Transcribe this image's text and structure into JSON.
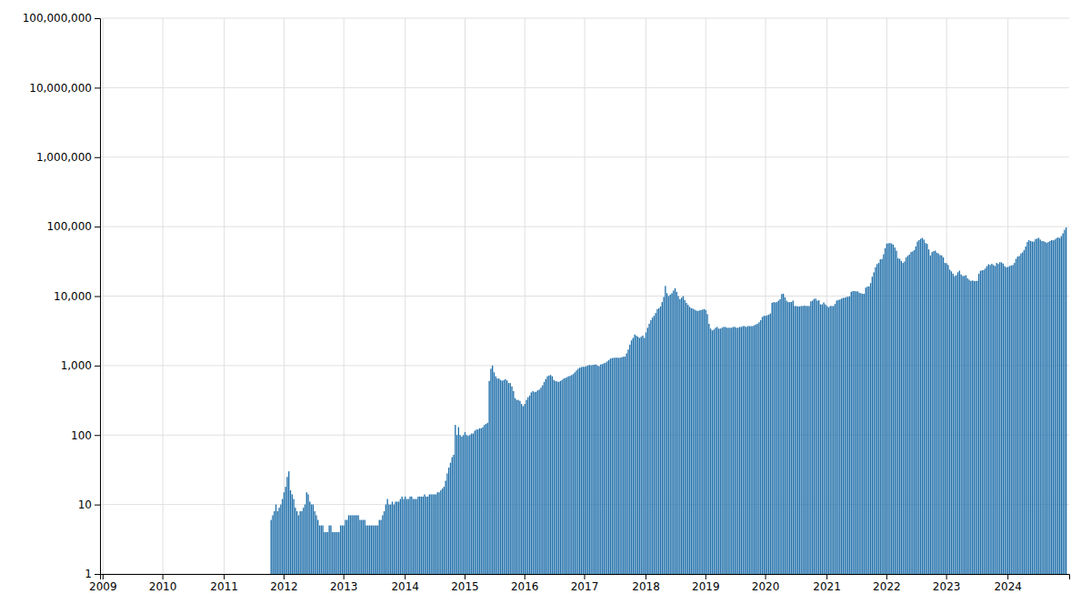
{
  "chart_data": {
    "type": "bar",
    "color": "#1f6faa",
    "log": "y",
    "grid": true,
    "ylim": [
      1,
      100000000
    ],
    "yticks": [
      1,
      10,
      100,
      {
        "value": 1000,
        "label": "1,000"
      },
      {
        "value": 10000,
        "label": "10,000"
      },
      {
        "value": 100000,
        "label": "100,000"
      },
      {
        "value": 1000000,
        "label": "1,000,000"
      },
      {
        "value": 10000000,
        "label": "10,000,000"
      },
      {
        "value": 100000000,
        "label": "100,000,000"
      }
    ],
    "categories": [
      "2009",
      null,
      null,
      null,
      null,
      null,
      null,
      null,
      null,
      null,
      null,
      null,
      null,
      null,
      null,
      null,
      null,
      null,
      null,
      null,
      null,
      null,
      null,
      null,
      null,
      null,
      null,
      null,
      null,
      null,
      null,
      null,
      null,
      null,
      null,
      null,
      null,
      "2010",
      null,
      null,
      null,
      null,
      null,
      null,
      null,
      null,
      null,
      null,
      null,
      null,
      null,
      null,
      null,
      null,
      null,
      null,
      null,
      null,
      null,
      null,
      null,
      null,
      null,
      null,
      null,
      null,
      null,
      null,
      null,
      null,
      null,
      null,
      null,
      null,
      null,
      "2011",
      null,
      null,
      null,
      null,
      null,
      null,
      null,
      null,
      null,
      null,
      null,
      null,
      null,
      null,
      null,
      null,
      null,
      null,
      null,
      null,
      null,
      null,
      null,
      null,
      null,
      null,
      null,
      null,
      null,
      null,
      null,
      null,
      null,
      null,
      null,
      null,
      "2012",
      null,
      null,
      null,
      null,
      null,
      null,
      null,
      null,
      null,
      null,
      null,
      null,
      null,
      null,
      null,
      null,
      null,
      null,
      null,
      null,
      null,
      null,
      null,
      null,
      null,
      null,
      null,
      null,
      null,
      null,
      null,
      null,
      null,
      null,
      null,
      null,
      "2013",
      null,
      null,
      null,
      null,
      null,
      null,
      null,
      null,
      null,
      null,
      null,
      null,
      null,
      null,
      null,
      null,
      null,
      null,
      null,
      null,
      null,
      null,
      null,
      null,
      null,
      null,
      null,
      null,
      null,
      null,
      null,
      null,
      null,
      null,
      null,
      null,
      null,
      "2014",
      null,
      null,
      null,
      null,
      null,
      null,
      null,
      null,
      null,
      null,
      null,
      null,
      null,
      null,
      null,
      null,
      null,
      null,
      null,
      null,
      null,
      null,
      null,
      null,
      null,
      null,
      null,
      null,
      null,
      null,
      null,
      null,
      null,
      null,
      null,
      null,
      "2015",
      null,
      null,
      null,
      null,
      null,
      null,
      null,
      null,
      null,
      null,
      null,
      null,
      null,
      null,
      null,
      null,
      null,
      null,
      null,
      null,
      null,
      null,
      null,
      null,
      null,
      null,
      null,
      null,
      null,
      null,
      null,
      null,
      null,
      null,
      null,
      null,
      "2016",
      null,
      null,
      null,
      null,
      null,
      null,
      null,
      null,
      null,
      null,
      null,
      null,
      null,
      null,
      null,
      null,
      null,
      null,
      null,
      null,
      null,
      null,
      null,
      null,
      null,
      null,
      null,
      null,
      null,
      null,
      null,
      null,
      null,
      null,
      null,
      null,
      "2017",
      null,
      null,
      null,
      null,
      null,
      null,
      null,
      null,
      null,
      null,
      null,
      null,
      null,
      null,
      null,
      null,
      null,
      null,
      null,
      null,
      null,
      null,
      null,
      null,
      null,
      null,
      null,
      null,
      null,
      null,
      null,
      null,
      null,
      null,
      null,
      null,
      null,
      "2018",
      null,
      null,
      null,
      null,
      null,
      null,
      null,
      null,
      null,
      null,
      null,
      null,
      null,
      null,
      null,
      null,
      null,
      null,
      null,
      null,
      null,
      null,
      null,
      null,
      null,
      null,
      null,
      null,
      null,
      null,
      null,
      null,
      null,
      null,
      null,
      null,
      "2019",
      null,
      null,
      null,
      null,
      null,
      null,
      null,
      null,
      null,
      null,
      null,
      null,
      null,
      null,
      null,
      null,
      null,
      null,
      null,
      null,
      null,
      null,
      null,
      null,
      null,
      null,
      null,
      null,
      null,
      null,
      null,
      null,
      null,
      null,
      null,
      null,
      "2020",
      null,
      null,
      null,
      null,
      null,
      null,
      null,
      null,
      null,
      null,
      null,
      null,
      null,
      null,
      null,
      null,
      null,
      null,
      null,
      null,
      null,
      null,
      null,
      null,
      null,
      null,
      null,
      null,
      null,
      null,
      null,
      null,
      null,
      null,
      null,
      null,
      null,
      "2021",
      null,
      null,
      null,
      null,
      null,
      null,
      null,
      null,
      null,
      null,
      null,
      null,
      null,
      null,
      null,
      null,
      null,
      null,
      null,
      null,
      null,
      null,
      null,
      null,
      null,
      null,
      null,
      null,
      null,
      null,
      null,
      null,
      null,
      null,
      null,
      null,
      "2022",
      null,
      null,
      null,
      null,
      null,
      null,
      null,
      null,
      null,
      null,
      null,
      null,
      null,
      null,
      null,
      null,
      null,
      null,
      null,
      null,
      null,
      null,
      null,
      null,
      null,
      null,
      null,
      null,
      null,
      null,
      null,
      null,
      null,
      null,
      null,
      null,
      "2023",
      null,
      null,
      null,
      null,
      null,
      null,
      null,
      null,
      null,
      null,
      null,
      null,
      null,
      null,
      null,
      null,
      null,
      null,
      null,
      null,
      null,
      null,
      null,
      null,
      null,
      null,
      null,
      null,
      null,
      null,
      null,
      null,
      null,
      null,
      null,
      null,
      null,
      "2024",
      null,
      null,
      null,
      null,
      null,
      null,
      null,
      null,
      null,
      null,
      null,
      null,
      null,
      null,
      null,
      null,
      null,
      null,
      null,
      null,
      null,
      null,
      null,
      null,
      null,
      null,
      null,
      null,
      null,
      null,
      null,
      null,
      null,
      null,
      null,
      null
    ],
    "values": [
      1,
      1,
      1,
      1,
      1,
      1,
      1,
      1,
      1,
      1,
      1,
      1,
      1,
      1,
      1,
      1,
      1,
      1,
      1,
      1,
      1,
      1,
      1,
      1,
      1,
      1,
      1,
      1,
      1,
      1,
      1,
      1,
      1,
      1,
      1,
      1,
      1,
      1,
      1,
      1,
      1,
      1,
      1,
      1,
      1,
      1,
      1,
      1,
      1,
      1,
      1,
      1,
      1,
      1,
      1,
      1,
      1,
      1,
      1,
      1,
      1,
      1,
      1,
      1,
      1,
      1,
      1,
      1,
      1,
      1,
      1,
      1,
      1,
      1,
      1,
      1,
      1,
      1,
      1,
      1,
      1,
      1,
      1,
      1,
      1,
      1,
      1,
      1,
      1,
      1,
      1,
      1,
      1,
      1,
      1,
      1,
      1,
      1,
      1,
      1,
      1,
      1,
      1,
      1,
      6,
      7,
      8,
      10,
      8,
      9,
      10,
      12,
      15,
      18,
      25,
      30,
      16,
      14,
      12,
      9,
      8,
      7,
      8,
      8,
      9,
      10,
      15,
      14,
      11,
      10,
      10,
      8,
      7,
      6,
      5,
      5,
      5,
      4,
      4,
      4,
      5,
      5,
      4,
      4,
      4,
      4,
      4,
      5,
      5,
      5,
      6,
      6,
      7,
      7,
      7,
      7,
      7,
      7,
      7,
      6,
      6,
      6,
      6,
      5,
      5,
      5,
      5,
      5,
      5,
      5,
      5,
      6,
      6,
      7,
      8,
      10,
      12,
      10,
      10,
      11,
      10,
      11,
      11,
      11,
      12,
      13,
      12,
      13,
      12,
      12,
      13,
      13,
      12,
      12,
      12,
      13,
      13,
      13,
      13,
      14,
      13,
      13,
      14,
      14,
      14,
      14,
      14,
      15,
      15,
      16,
      17,
      18,
      22,
      28,
      34,
      40,
      48,
      52,
      140,
      100,
      130,
      100,
      95,
      100,
      110,
      100,
      97,
      100,
      105,
      105,
      115,
      120,
      120,
      125,
      125,
      130,
      140,
      145,
      150,
      600,
      900,
      1000,
      800,
      700,
      650,
      650,
      620,
      605,
      618,
      638,
      610,
      560,
      560,
      500,
      430,
      340,
      320,
      320,
      310,
      280,
      260,
      280,
      320,
      350,
      370,
      410,
      430,
      415,
      420,
      440,
      450,
      480,
      520,
      580,
      640,
      700,
      720,
      730,
      700,
      620,
      600,
      590,
      580,
      600,
      620,
      650,
      660,
      680,
      700,
      710,
      730,
      755,
      800,
      850,
      900,
      930,
      950,
      960,
      960,
      980,
      1000,
      1020,
      1010,
      1020,
      1030,
      1040,
      1000,
      980,
      1040,
      1050,
      1080,
      1100,
      1150,
      1200,
      1260,
      1280,
      1290,
      1300,
      1300,
      1290,
      1300,
      1320,
      1340,
      1350,
      1500,
      1700,
      2000,
      2300,
      2500,
      2800,
      2700,
      2600,
      2500,
      2600,
      2700,
      2500,
      3000,
      3500,
      4000,
      4500,
      4900,
      5200,
      5700,
      6500,
      6700,
      7100,
      8200,
      9700,
      14000,
      11000,
      10000,
      10500,
      11000,
      12000,
      13000,
      11500,
      10000,
      9000,
      9500,
      10000,
      8800,
      8000,
      7500,
      7000,
      6700,
      6600,
      6400,
      6200,
      6100,
      6200,
      6300,
      6400,
      6500,
      6300,
      5500,
      4000,
      3400,
      3200,
      3300,
      3500,
      3600,
      3400,
      3400,
      3500,
      3600,
      3600,
      3500,
      3500,
      3500,
      3500,
      3600,
      3600,
      3500,
      3500,
      3600,
      3600,
      3700,
      3700,
      3600,
      3700,
      3700,
      3700,
      3700,
      3800,
      3900,
      4000,
      4200,
      4500,
      5000,
      5200,
      5200,
      5300,
      5400,
      5600,
      8000,
      8200,
      8100,
      8200,
      8600,
      9000,
      10700,
      10800,
      9600,
      8600,
      8200,
      8200,
      8200,
      8600,
      7200,
      7200,
      7100,
      7100,
      7200,
      7200,
      7300,
      7200,
      7200,
      7200,
      8400,
      8600,
      9100,
      9200,
      8600,
      8700,
      7600,
      7600,
      8100,
      7600,
      7200,
      6900,
      7200,
      7200,
      7200,
      7700,
      8600,
      8800,
      8900,
      9200,
      9400,
      9500,
      9700,
      9800,
      9900,
      11500,
      11800,
      11800,
      11700,
      11700,
      11200,
      11000,
      10800,
      10800,
      13200,
      13700,
      13800,
      15400,
      19000,
      22000,
      26000,
      28900,
      30000,
      33800,
      34200,
      40000,
      48800,
      56800,
      57600,
      58000,
      56900,
      55000,
      50000,
      45000,
      35000,
      34400,
      32000,
      30000,
      31500,
      36000,
      38000,
      39500,
      43000,
      43900,
      46000,
      52000,
      60800,
      64000,
      67000,
      68800,
      65000,
      58000,
      56400,
      47000,
      38400,
      43000,
      44400,
      45000,
      42100,
      41000,
      39000,
      38500,
      36000,
      30000,
      29700,
      28000,
      24000,
      22700,
      21000,
      19400,
      20000,
      22000,
      23200,
      20500,
      19500,
      19500,
      20000,
      18000,
      17200,
      16500,
      16800,
      16500,
      16500,
      16600,
      21000,
      23100,
      23500,
      23700,
      25000,
      27000,
      28700,
      28000,
      29200,
      28000,
      27100,
      30000,
      29000,
      30800,
      30500,
      29400,
      27000,
      26000,
      26200,
      27100,
      27500,
      28000,
      30000,
      34400,
      37000,
      37700,
      41000,
      42700,
      46000,
      51800,
      60000,
      63700,
      62000,
      61000,
      60900,
      66000,
      67200,
      69000,
      65000,
      62000,
      61600,
      60000,
      58300,
      60000,
      62000,
      64000,
      63300,
      65000,
      68000,
      70200,
      68200,
      73000,
      80000,
      90000,
      97200
    ]
  }
}
